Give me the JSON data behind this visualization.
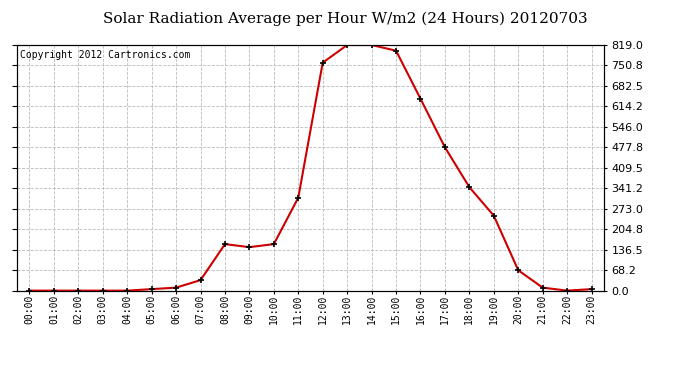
{
  "title": "Solar Radiation Average per Hour W/m2 (24 Hours) 20120703",
  "copyright": "Copyright 2012 Cartronics.com",
  "hours": [
    "00:00",
    "01:00",
    "02:00",
    "03:00",
    "04:00",
    "05:00",
    "06:00",
    "07:00",
    "08:00",
    "09:00",
    "10:00",
    "11:00",
    "12:00",
    "13:00",
    "14:00",
    "15:00",
    "16:00",
    "17:00",
    "18:00",
    "19:00",
    "20:00",
    "21:00",
    "22:00",
    "23:00"
  ],
  "values": [
    0,
    0,
    0,
    0,
    0,
    5,
    10,
    35,
    155,
    145,
    155,
    310,
    760,
    819,
    819,
    800,
    640,
    478,
    345,
    250,
    68,
    10,
    0,
    5
  ],
  "line_color": "#cc0000",
  "marker_color": "#000000",
  "background_color": "#ffffff",
  "grid_color": "#bbbbbb",
  "ylim": [
    0,
    819.0
  ],
  "yticks": [
    0.0,
    68.2,
    136.5,
    204.8,
    273.0,
    341.2,
    409.5,
    477.8,
    546.0,
    614.2,
    682.5,
    750.8,
    819.0
  ],
  "title_fontsize": 11,
  "copyright_fontsize": 7
}
